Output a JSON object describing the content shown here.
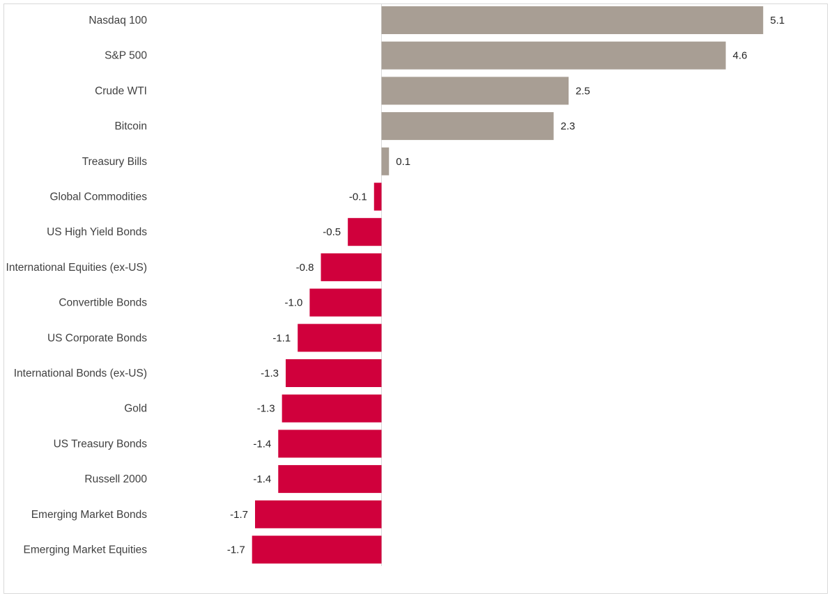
{
  "chart_data": {
    "type": "bar",
    "orientation": "horizontal",
    "categories": [
      "Nasdaq 100",
      "S&P 500",
      "Crude WTI",
      "Bitcoin",
      "Treasury Bills",
      "Global Commodities",
      "US High Yield Bonds",
      "International Equities (ex-US)",
      "Convertible Bonds",
      "US Corporate Bonds",
      "International Bonds (ex-US)",
      "Gold",
      "US Treasury Bonds",
      "Russell 2000",
      "Emerging Market Bonds",
      "Emerging Market Equities"
    ],
    "values": [
      5.1,
      4.6,
      2.5,
      2.3,
      0.1,
      -0.1,
      -0.45,
      -0.81,
      -0.96,
      -1.12,
      -1.28,
      -1.33,
      -1.38,
      -1.38,
      -1.69,
      -1.73
    ],
    "value_labels": [
      "5.1",
      "4.6",
      "2.5",
      "2.3",
      "0.1",
      "-0.1",
      "-0.5",
      "-0.8",
      "-1.0",
      "-1.1",
      "-1.3",
      "-1.3",
      "-1.4",
      "-1.4",
      "-1.7",
      "-1.7"
    ],
    "xlim": [
      -2,
      5.35
    ],
    "colors": {
      "positive": "#a89e94",
      "negative": "#d0003c",
      "axis": "#d9d9d9"
    },
    "grid": false,
    "legend": "none"
  }
}
